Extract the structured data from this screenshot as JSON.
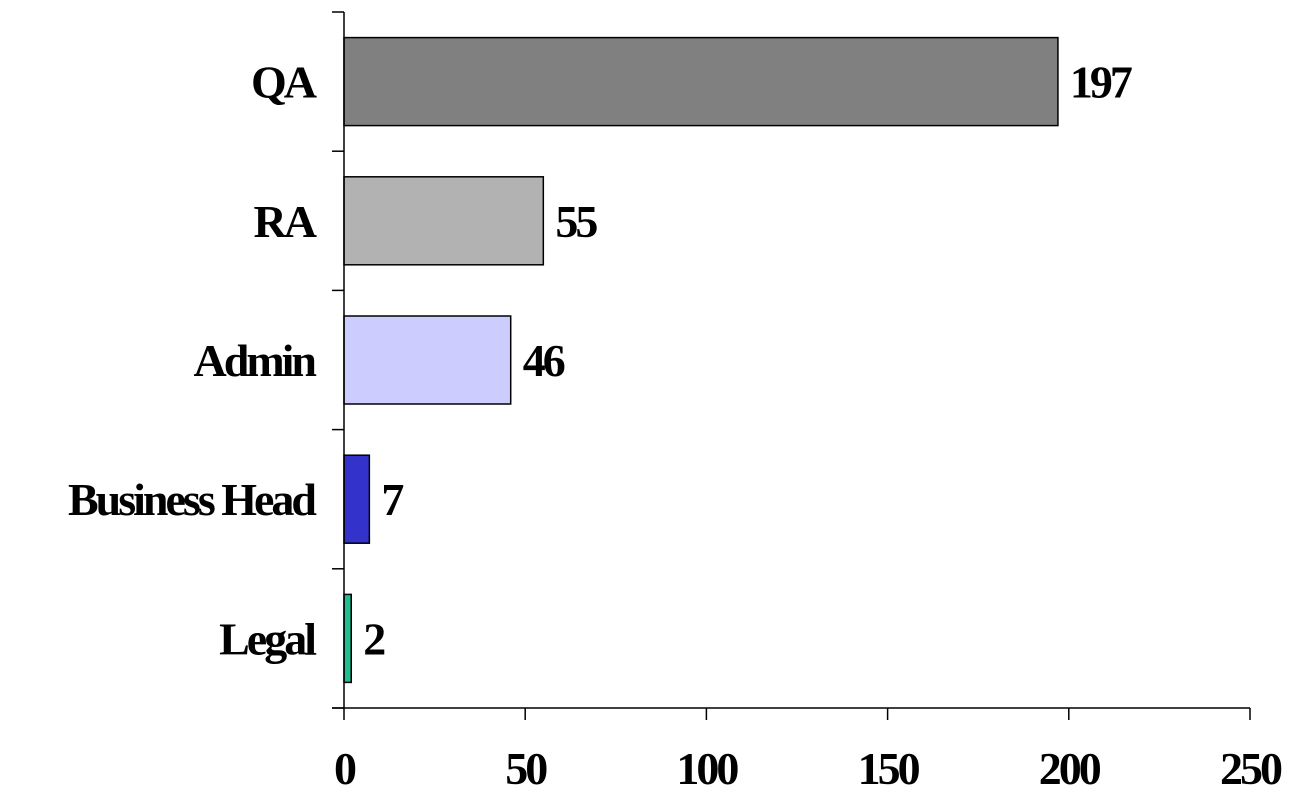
{
  "chart_data": {
    "type": "bar",
    "orientation": "horizontal",
    "title": "",
    "xlabel": "",
    "ylabel": "",
    "categories": [
      "QA",
      "RA",
      "Admin",
      "Business Head",
      "Legal"
    ],
    "values": [
      197,
      55,
      46,
      7,
      2
    ],
    "value_labels": [
      "197",
      "55",
      "46",
      "7",
      "2"
    ],
    "bar_colors": [
      "#808080",
      "#b2b2b2",
      "#ccccff",
      "#3333cc",
      "#1fbf8f"
    ],
    "xlim": [
      0,
      250
    ],
    "x_ticks": [
      0,
      50,
      100,
      150,
      200,
      250
    ],
    "x_tick_labels": [
      "0",
      "50",
      "100",
      "150",
      "200",
      "250"
    ],
    "grid": false,
    "legend": "none"
  }
}
